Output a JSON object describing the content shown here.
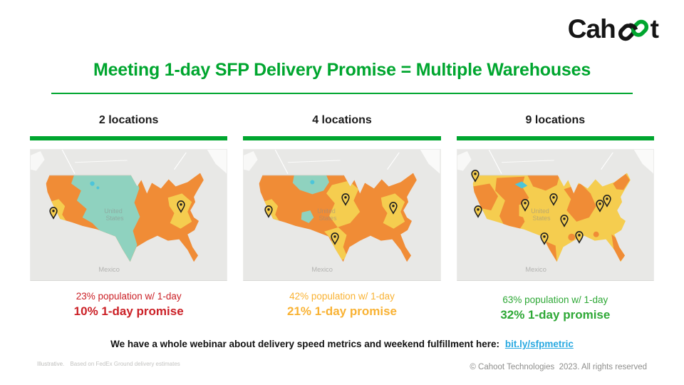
{
  "logo": {
    "part1": "Cah",
    "part2": "t"
  },
  "title": "Meeting 1-day SFP Delivery Promise = Multiple Warehouses",
  "columns": [
    {
      "header": "2 locations",
      "stat_population": "23% population w/ 1-day",
      "stat_promise": "10% 1-day promise"
    },
    {
      "header": "4 locations",
      "stat_population": "42% population w/ 1-day",
      "stat_promise": "21% 1-day promise"
    },
    {
      "header": "9 locations",
      "stat_population": "63% population w/ 1-day",
      "stat_promise": "32% 1-day promise"
    }
  ],
  "map_labels": {
    "country_line1": "United",
    "country_line2": "States",
    "mexico": "Mexico"
  },
  "maps": [
    {
      "pins": [
        [
          11.8,
          52.4
        ],
        [
          76.8,
          47.6
        ]
      ]
    },
    {
      "pins": [
        [
          12.5,
          51.4
        ],
        [
          51.8,
          42.2
        ],
        [
          46.4,
          71.9
        ],
        [
          76.1,
          48.6
        ]
      ]
    },
    {
      "pins": [
        [
          9.3,
          24.3
        ],
        [
          10.7,
          51.4
        ],
        [
          34.6,
          46.5
        ],
        [
          49.3,
          42.2
        ],
        [
          44.3,
          71.9
        ],
        [
          54.6,
          58.4
        ],
        [
          62.1,
          70.8
        ],
        [
          72.9,
          47.0
        ],
        [
          76.4,
          43.2
        ]
      ]
    }
  ],
  "footer": {
    "webinar_text": "We have a whole webinar about delivery speed metrics and weekend fulfillment here:",
    "webinar_link": "bit.ly/sfpmetric",
    "footnote_label": "Illustrative.",
    "footnote_rest": "Based on FedEx Ground delivery estimates",
    "copyright": "© Cahoot Technologies  2023. All rights reserved"
  },
  "colors": {
    "brand_green": "#00a62f",
    "stat_red": "#cb2026",
    "stat_yellow": "#f9b233",
    "stat_green": "#2ea836",
    "link_blue": "#29a9e1",
    "map_orange": "#f08c36",
    "map_yellow": "#f5cd4f",
    "map_teal": "#8fd2bf",
    "map_water": "#4cc5da"
  }
}
